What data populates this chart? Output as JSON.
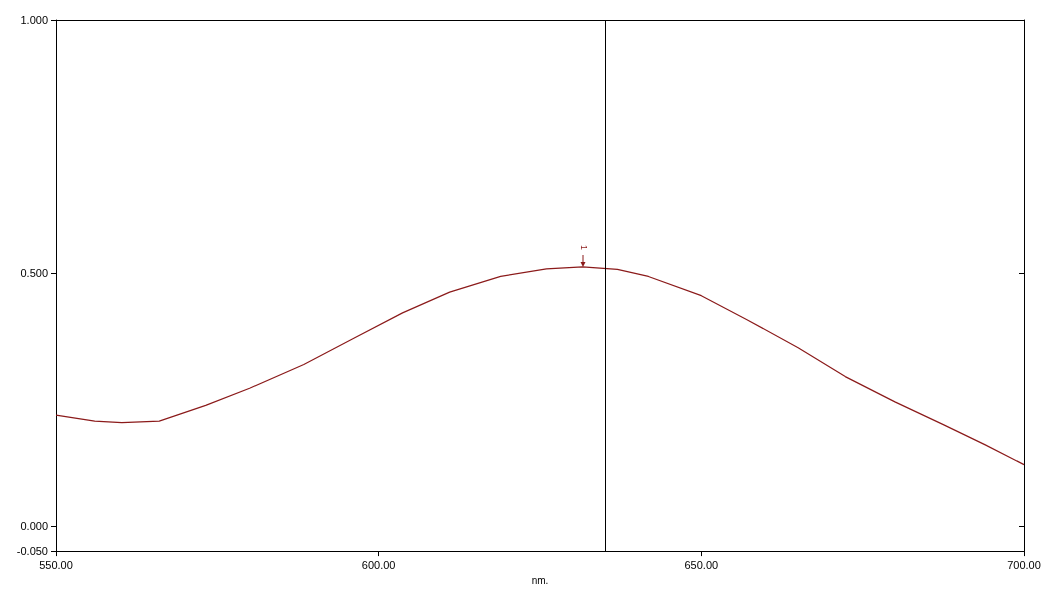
{
  "chart_data": {
    "type": "line",
    "xlabel": "nm.",
    "x": [
      550,
      556,
      560.2,
      566,
      573.2,
      580,
      588.4,
      596,
      603.7,
      611,
      618.9,
      626,
      631.6,
      637,
      641.8,
      650,
      657,
      665,
      672.3,
      680,
      687.5,
      694,
      700
    ],
    "series": [
      {
        "color": "#8b1a1a",
        "values": [
          0.219,
          0.207,
          0.204,
          0.207,
          0.238,
          0.272,
          0.319,
          0.37,
          0.421,
          0.462,
          0.493,
          0.508,
          0.512,
          0.507,
          0.493,
          0.455,
          0.408,
          0.352,
          0.295,
          0.245,
          0.2,
          0.16,
          0.121
        ]
      }
    ],
    "xlim": [
      550,
      700
    ],
    "xticks": [
      {
        "value": 550,
        "label": "550.00"
      },
      {
        "value": 600,
        "label": "600.00"
      },
      {
        "value": 650,
        "label": "650.00"
      },
      {
        "value": 700,
        "label": "700.00"
      }
    ],
    "ylim": [
      -0.05,
      1
    ],
    "yticks": [
      {
        "value": -0.05,
        "label": "-0.050"
      },
      {
        "value": 0,
        "label": "0.000"
      },
      {
        "value": 0.5,
        "label": "0.500"
      },
      {
        "value": 1,
        "label": "1.000"
      }
    ],
    "ref_lines": [
      {
        "axis": "x",
        "value": 635.1,
        "color": "#000000"
      }
    ],
    "annotations": [
      {
        "text": "1",
        "x": 631.6,
        "y": 0.512
      }
    ],
    "grid": false,
    "marker": "none",
    "line_style": "solid"
  }
}
